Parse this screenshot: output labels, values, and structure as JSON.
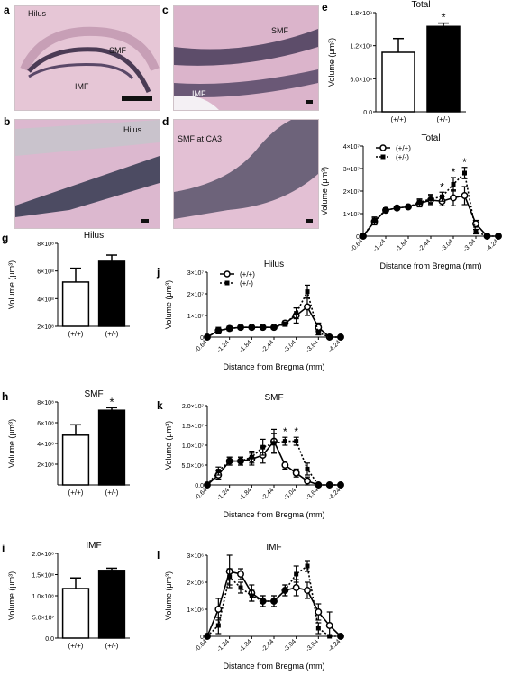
{
  "micrographs": {
    "a": {
      "panel_label": "a",
      "hilus": "Hilus",
      "smf": "SMF",
      "imf": "IMF"
    },
    "b": {
      "panel_label": "b",
      "hilus": "Hilus"
    },
    "c": {
      "panel_label": "c",
      "smf": "SMF",
      "imf": "IMF"
    },
    "d": {
      "panel_label": "d",
      "smf_ca3": "SMF at CA3"
    }
  },
  "chart_data": [
    {
      "id": "e",
      "panel_label": "e",
      "type": "bar",
      "title": "Total",
      "ylabel": "Volume (μm³)",
      "categories": [
        "(+/+)",
        "(+/-)"
      ],
      "values": [
        1080000000.0,
        1550000000.0
      ],
      "errors": [
        250000000.0,
        60000000.0
      ],
      "fills": [
        "#ffffff",
        "#000000"
      ],
      "ylim": [
        0,
        1800000000.0
      ],
      "yticks": [
        {
          "v": 0,
          "t": "0.0"
        },
        {
          "v": 600000000.0,
          "t": "6.0×10⁸"
        },
        {
          "v": 1200000000.0,
          "t": "1.2×10⁹"
        },
        {
          "v": 1800000000.0,
          "t": "1.8×10⁹"
        }
      ],
      "significance": [
        "",
        "*"
      ]
    },
    {
      "id": "f",
      "panel_label": "f",
      "type": "line",
      "title": "Total",
      "xlabel": "Distance from Bregma (mm)",
      "ylabel": "Volume (μm³)",
      "x": [
        -0.64,
        -0.94,
        -1.24,
        -1.54,
        -1.84,
        -2.14,
        -2.44,
        -2.74,
        -3.04,
        -3.34,
        -3.64,
        -3.94,
        -4.24
      ],
      "xticks": [
        "-0.64",
        "-1.24",
        "-1.84",
        "-2.44",
        "-3.04",
        "-3.64",
        "-4.24"
      ],
      "ylim": [
        0,
        40000000.0
      ],
      "yticks": [
        {
          "v": 0,
          "t": "0"
        },
        {
          "v": 10000000.0,
          "t": "1×10⁷"
        },
        {
          "v": 20000000.0,
          "t": "2×10⁷"
        },
        {
          "v": 30000000.0,
          "t": "3×10⁷"
        },
        {
          "v": 40000000.0,
          "t": "4×10⁷"
        }
      ],
      "legend": [
        "(+/+)",
        "(+/-)"
      ],
      "series": [
        {
          "name": "(+/+)",
          "values": [
            0,
            6500000.0,
            11500000.0,
            12500000.0,
            13000000.0,
            14500000.0,
            16000000.0,
            15500000.0,
            17000000.0,
            18000000.0,
            5500000.0,
            0,
            0
          ],
          "errors": [
            0,
            1500000.0,
            1000000.0,
            500000.0,
            500000.0,
            1500000.0,
            2000000.0,
            2000000.0,
            3500000.0,
            4000000.0,
            1500000.0,
            0,
            0
          ]
        },
        {
          "name": "(+/-)",
          "values": [
            0,
            7000000.0,
            11500000.0,
            12500000.0,
            13000000.0,
            15000000.0,
            16500000.0,
            17500000.0,
            23000000.0,
            28000000.0,
            2000000.0,
            0,
            0
          ],
          "errors": [
            0,
            1500000.0,
            1000000.0,
            500000.0,
            500000.0,
            1500000.0,
            2000000.0,
            2000000.0,
            3000000.0,
            2500000.0,
            1000000.0,
            0,
            0
          ]
        }
      ],
      "significance": [
        "",
        "",
        "",
        "",
        "",
        "",
        "",
        "*",
        "*",
        "*",
        "",
        "",
        ""
      ]
    },
    {
      "id": "g",
      "panel_label": "g",
      "type": "bar",
      "title": "Hilus",
      "ylabel": "Volume (μm³)",
      "categories": [
        "(+/+)",
        "(+/-)"
      ],
      "values": [
        520000000.0,
        670000000.0
      ],
      "errors": [
        100000000.0,
        45000000.0
      ],
      "fills": [
        "#ffffff",
        "#000000"
      ],
      "ylim": [
        200000000.0,
        800000000.0
      ],
      "yticks": [
        {
          "v": 200000000.0,
          "t": "2×10⁸"
        },
        {
          "v": 400000000.0,
          "t": "4×10⁸"
        },
        {
          "v": 600000000.0,
          "t": "6×10⁸"
        },
        {
          "v": 800000000.0,
          "t": "8×10⁸"
        }
      ],
      "significance": [
        "",
        ""
      ]
    },
    {
      "id": "j",
      "panel_label": "j",
      "type": "line",
      "title": "Hilus",
      "xlabel": "Distance from Bregma (mm)",
      "ylabel": "Volume (μm³)",
      "x": [
        -0.64,
        -0.94,
        -1.24,
        -1.54,
        -1.84,
        -2.14,
        -2.44,
        -2.74,
        -3.04,
        -3.34,
        -3.64,
        -3.94,
        -4.24
      ],
      "xticks": [
        "-0.64",
        "-1.24",
        "-1.84",
        "-2.44",
        "-3.04",
        "-3.64",
        "-4.24"
      ],
      "ylim": [
        0,
        30000000.0
      ],
      "yticks": [
        {
          "v": 0,
          "t": "0"
        },
        {
          "v": 10000000.0,
          "t": "1×10⁷"
        },
        {
          "v": 20000000.0,
          "t": "2×10⁷"
        },
        {
          "v": 30000000.0,
          "t": "3×10⁷"
        }
      ],
      "legend": [
        "(+/+)",
        "(+/-)"
      ],
      "series": [
        {
          "name": "(+/+)",
          "values": [
            0,
            3000000.0,
            4000000.0,
            4500000.0,
            4500000.0,
            4500000.0,
            4500000.0,
            6500000.0,
            10000000.0,
            14000000.0,
            4500000.0,
            0,
            0
          ],
          "errors": [
            0,
            1500000.0,
            1000000.0,
            500000.0,
            500000.0,
            500000.0,
            500000.0,
            1000000.0,
            3500000.0,
            4000000.0,
            2000000.0,
            0,
            0
          ]
        },
        {
          "name": "(+/-)",
          "values": [
            0,
            3000000.0,
            4000000.0,
            4500000.0,
            4500000.0,
            4500000.0,
            4500000.0,
            6000000.0,
            11000000.0,
            21000000.0,
            2000000.0,
            0,
            0
          ],
          "errors": [
            0,
            1000000.0,
            1000000.0,
            500000.0,
            500000.0,
            500000.0,
            500000.0,
            1000000.0,
            2500000.0,
            3000000.0,
            1000000.0,
            0,
            0
          ]
        }
      ],
      "significance": [
        "",
        "",
        "",
        "",
        "",
        "",
        "",
        "",
        "",
        "",
        "",
        "",
        ""
      ]
    },
    {
      "id": "h",
      "panel_label": "h",
      "type": "bar",
      "title": "SMF",
      "ylabel": "Volume (μm³)",
      "categories": [
        "(+/+)",
        "(+/-)"
      ],
      "values": [
        480000000.0,
        720000000.0
      ],
      "errors": [
        100000000.0,
        25000000.0
      ],
      "fills": [
        "#ffffff",
        "#000000"
      ],
      "ylim": [
        0,
        800000000.0
      ],
      "yticks": [
        {
          "v": 200000000.0,
          "t": "2×10⁸"
        },
        {
          "v": 400000000.0,
          "t": "4×10⁸"
        },
        {
          "v": 600000000.0,
          "t": "6×10⁸"
        },
        {
          "v": 800000000.0,
          "t": "8×10⁸"
        }
      ],
      "significance": [
        "",
        "*"
      ]
    },
    {
      "id": "k",
      "panel_label": "k",
      "type": "line",
      "title": "SMF",
      "xlabel": "Distance from Bregma (mm)",
      "ylabel": "Volume (μm³)",
      "x": [
        -0.64,
        -0.94,
        -1.24,
        -1.54,
        -1.84,
        -2.14,
        -2.44,
        -2.74,
        -3.04,
        -3.34,
        -3.64,
        -3.94,
        -4.24
      ],
      "xticks": [
        "-0.64",
        "-1.24",
        "-1.84",
        "-2.44",
        "-3.04",
        "-3.64",
        "-4.24"
      ],
      "ylim": [
        0,
        20000000.0
      ],
      "yticks": [
        {
          "v": 0,
          "t": "0.0"
        },
        {
          "v": 5000000.0,
          "t": "5.0×10⁶"
        },
        {
          "v": 10000000.0,
          "t": "1.0×10⁷"
        },
        {
          "v": 15000000.0,
          "t": "1.5×10⁷"
        },
        {
          "v": 20000000.0,
          "t": "2.0×10⁷"
        }
      ],
      "series": [
        {
          "name": "(+/+)",
          "values": [
            0,
            2500000.0,
            6000000.0,
            6000000.0,
            6500000.0,
            7500000.0,
            11000000.0,
            5000000.0,
            3000000.0,
            1000000.0,
            0,
            0,
            0
          ],
          "errors": [
            0,
            1000000.0,
            1000000.0,
            1000000.0,
            1500000.0,
            2000000.0,
            3000000.0,
            1000000.0,
            1000000.0,
            1000000.0,
            0,
            0,
            0
          ]
        },
        {
          "name": "(+/-)",
          "values": [
            0,
            3500000.0,
            6000000.0,
            6000000.0,
            7000000.0,
            9500000.0,
            10500000.0,
            11000000.0,
            11000000.0,
            4000000.0,
            0,
            0,
            0
          ],
          "errors": [
            0,
            1000000.0,
            1000000.0,
            1000000.0,
            1500000.0,
            2000000.0,
            2500000.0,
            1000000.0,
            1000000.0,
            1500000.0,
            0,
            0,
            0
          ]
        }
      ],
      "significance": [
        "",
        "",
        "",
        "",
        "",
        "",
        "",
        "*",
        "*",
        "",
        "",
        "",
        ""
      ]
    },
    {
      "id": "i",
      "panel_label": "i",
      "type": "bar",
      "title": "IMF",
      "ylabel": "Volume (μm³)",
      "categories": [
        "(+/+)",
        "(+/-)"
      ],
      "values": [
        117000000.0,
        160000000.0
      ],
      "errors": [
        25000000.0,
        5000000.0
      ],
      "fills": [
        "#ffffff",
        "#000000"
      ],
      "ylim": [
        0,
        200000000.0
      ],
      "yticks": [
        {
          "v": 0,
          "t": "0.0"
        },
        {
          "v": 50000000.0,
          "t": "5.0×10⁷"
        },
        {
          "v": 100000000.0,
          "t": "1.0×10⁸"
        },
        {
          "v": 150000000.0,
          "t": "1.5×10⁸"
        },
        {
          "v": 200000000.0,
          "t": "2.0×10⁸"
        }
      ],
      "significance": [
        "",
        ""
      ]
    },
    {
      "id": "l",
      "panel_label": "l",
      "type": "line",
      "title": "IMF",
      "xlabel": "Distance from Bregma (mm)",
      "ylabel": "Volume (μm³)",
      "x": [
        -0.64,
        -0.94,
        -1.24,
        -1.54,
        -1.84,
        -2.14,
        -2.44,
        -2.74,
        -3.04,
        -3.34,
        -3.64,
        -3.94,
        -4.24
      ],
      "xticks": [
        "-0.64",
        "-1.24",
        "-1.84",
        "-2.44",
        "-3.04",
        "-3.64",
        "-4.24"
      ],
      "ylim": [
        0,
        3000000.0
      ],
      "yticks": [
        {
          "v": 0,
          "t": "0"
        },
        {
          "v": 1000000.0,
          "t": "1×10⁶"
        },
        {
          "v": 2000000.0,
          "t": "2×10⁶"
        },
        {
          "v": 3000000.0,
          "t": "3×10⁶"
        }
      ],
      "series": [
        {
          "name": "(+/+)",
          "values": [
            0,
            1000000.0,
            2400000.0,
            2300000.0,
            1600000.0,
            1300000.0,
            1300000.0,
            1700000.0,
            1800000.0,
            1700000.0,
            900000.0,
            400000.0,
            0
          ],
          "errors": [
            0,
            400000.0,
            600000.0,
            200000.0,
            300000.0,
            200000.0,
            200000.0,
            200000.0,
            300000.0,
            300000.0,
            300000.0,
            500000.0,
            0
          ]
        },
        {
          "name": "(+/-)",
          "values": [
            0,
            400000.0,
            2200000.0,
            1800000.0,
            1500000.0,
            1300000.0,
            1300000.0,
            1700000.0,
            2300000.0,
            2600000.0,
            300000.0,
            0,
            0
          ],
          "errors": [
            0,
            300000.0,
            300000.0,
            200000.0,
            200000.0,
            200000.0,
            200000.0,
            200000.0,
            300000.0,
            200000.0,
            200000.0,
            0,
            0
          ]
        }
      ],
      "significance": [
        "",
        "",
        "",
        "",
        "",
        "",
        "",
        "",
        "",
        "",
        "",
        "",
        ""
      ]
    }
  ]
}
